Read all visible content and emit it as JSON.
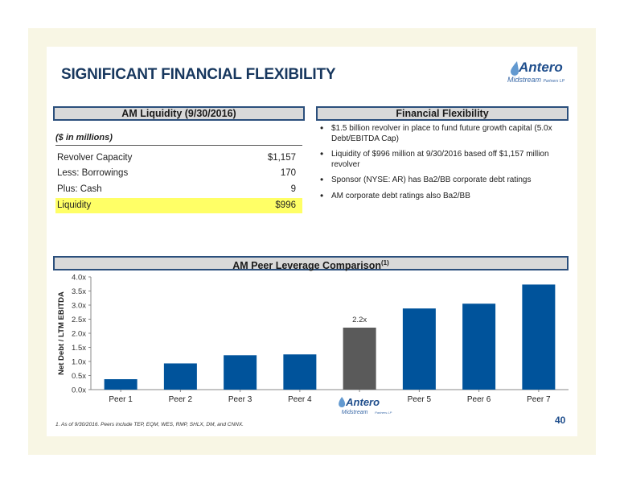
{
  "title": "SIGNIFICANT FINANCIAL FLEXIBILITY",
  "logo": {
    "name": "Antero",
    "subtitle": "Midstream",
    "suffix": "Partners LP"
  },
  "liquidity_panel": {
    "header": "AM Liquidity (9/30/2016)",
    "units": "($ in millions)",
    "rows": [
      {
        "label": "Revolver Capacity",
        "value": "$1,157"
      },
      {
        "label": "Less: Borrowings",
        "value": "170"
      },
      {
        "label": "Plus: Cash",
        "value": "9"
      },
      {
        "label": "Liquidity",
        "value": "$996"
      }
    ]
  },
  "flexibility_panel": {
    "header": "Financial Flexibility",
    "bullets": [
      "$1.5 billion revolver in place to fund future growth capital (5.0x Debt/EBITDA Cap)",
      "Liquidity of $996 million at 9/30/2016 based off $1,157 million revolver",
      "Sponsor (NYSE: AR) has Ba2/BB corporate debt ratings",
      "AM corporate debt ratings also Ba2/BB"
    ]
  },
  "chart_data": {
    "type": "bar",
    "title": "AM Peer Leverage Comparison",
    "title_superscript": "(1)",
    "ylabel": "Net Debt / LTM EBITDA",
    "xlabel": "",
    "ylim": [
      0,
      4.0
    ],
    "yticks": [
      "0.0x",
      "0.5x",
      "1.0x",
      "1.5x",
      "2.0x",
      "2.5x",
      "3.0x",
      "3.5x",
      "4.0x"
    ],
    "categories": [
      "Peer 1",
      "Peer 2",
      "Peer 3",
      "Peer 4",
      "AM",
      "Peer 5",
      "Peer 6",
      "Peer 7"
    ],
    "values": [
      0.37,
      0.93,
      1.22,
      1.25,
      2.2,
      2.88,
      3.05,
      3.73
    ],
    "bar_color": "#00539b",
    "highlight_index": 4,
    "highlight_color": "#5a5a5a",
    "data_labels": [
      null,
      null,
      null,
      null,
      "2.2x",
      null,
      null,
      null
    ],
    "axis_logo_index": 4
  },
  "footnote": "1.  As of 9/30/2016.  Peers include TEP, EQM, WES, RMP, SHLX, DM, and CNNX.",
  "page_number": "40"
}
